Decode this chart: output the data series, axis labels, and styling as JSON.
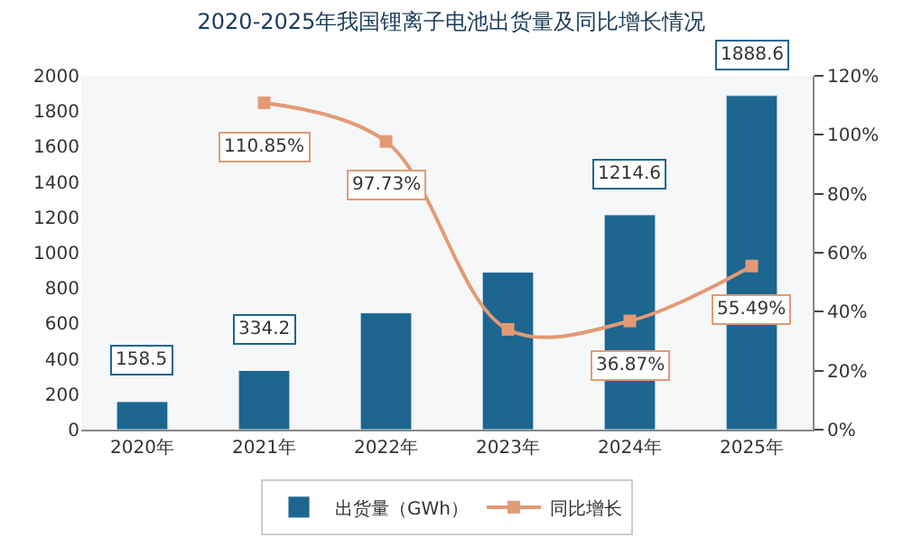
{
  "chart_data": {
    "type": "bar",
    "title": "2020-2025年我国锂离子电池出货量及同比增长情况",
    "categories": [
      "2020年",
      "2021年",
      "2022年",
      "2023年",
      "2024年",
      "2025年"
    ],
    "series": [
      {
        "name": "出货量（GWh）",
        "color": "#1c6690",
        "values": [
          158.5,
          334.2,
          660,
          890,
          1214.6,
          1888.6
        ],
        "value_labels": [
          "158.5",
          "334.2",
          null,
          null,
          "1214.6",
          "1888.6"
        ]
      },
      {
        "name": "同比增长",
        "type": "line",
        "axis": "y2",
        "color": "#e39a74",
        "marker": "square",
        "values": [
          null,
          110.85,
          97.73,
          34,
          36.87,
          55.49
        ],
        "value_labels": [
          null,
          "110.85%",
          "97.73%",
          null,
          "36.87%",
          "55.49%"
        ]
      }
    ],
    "ylim": [
      0,
      2000
    ],
    "yticks": [
      0,
      200,
      400,
      600,
      800,
      1000,
      1200,
      1400,
      1600,
      1800,
      2000
    ],
    "y2lim": [
      0,
      120
    ],
    "y2ticks": [
      {
        "value": 0,
        "label": "0%"
      },
      {
        "value": 20,
        "label": "20%"
      },
      {
        "value": 40,
        "label": "40%"
      },
      {
        "value": 60,
        "label": "60%"
      },
      {
        "value": 80,
        "label": "80%"
      },
      {
        "value": 100,
        "label": "100%"
      },
      {
        "value": 120,
        "label": "120%"
      }
    ],
    "grid": false,
    "legend": "bottom"
  }
}
